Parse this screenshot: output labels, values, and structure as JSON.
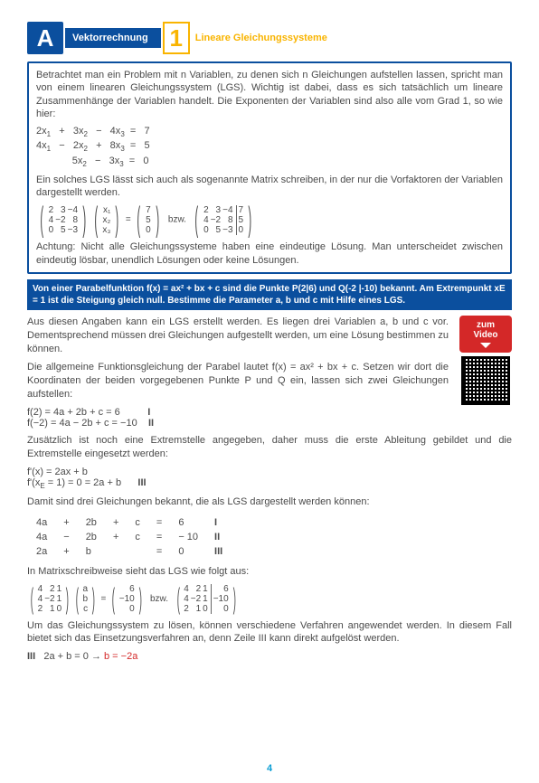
{
  "header": {
    "badge": "A",
    "section": "Vektorrechnung",
    "num": "1",
    "subtitle": "Lineare Gleichungssysteme"
  },
  "box1": {
    "intro": "Betrachtet man ein Problem mit n Variablen, zu denen sich n Gleichungen aufstellen lassen, spricht man von einem linearen Gleichungssystem (LGS). Wichtig ist dabei, dass es sich tatsächlich um lineare Zusammenhänge der Variablen handelt. Die Exponenten der Variablen sind also alle vom Grad 1, so wie hier:",
    "eq1": "2x",
    "eq_matrix_note": "Ein solches LGS lässt sich auch als sogenannte Matrix schreiben, in der nur die Vorfaktoren der Variablen dargestellt werden.",
    "warning": "Achtung: Nicht alle Gleichungssysteme haben eine eindeutige Lösung. Man unterscheidet zwischen eindeutig lösbar, unendlich Lösungen oder keine Lösungen."
  },
  "problem": "Von einer Parabelfunktion f(x) = ax² + bx + c sind die Punkte P(2|6) und Q(-2 |-10) bekannt. Am Extrempunkt xE = 1 ist die Steigung gleich null. Bestimme die Parameter a, b und c mit Hilfe eines LGS.",
  "solution": {
    "p1": "Aus diesen Angaben kann ein LGS erstellt werden. Es liegen drei Variablen a, b und c vor. Dementsprechend müssen drei Gleichungen aufgestellt werden, um eine Lösung bestimmen zu können.",
    "p2": "Die allgemeine Funktionsgleichung der Parabel lautet  f(x) = ax² + bx + c. Setzen wir dort die Koordinaten der beiden vorgegebenen Punkte P und Q ein, lassen sich zwei Gleichungen aufstellen:",
    "e1": "f(2) = 4a + 2b + c = 6",
    "e1n": "I",
    "e2": "f(−2) = 4a − 2b + c = −10",
    "e2n": "II",
    "p3": "Zusätzlich ist noch eine Extremstelle angegeben, daher muss die erste Ableitung gebildet und die Extremstelle eingesetzt werden:",
    "d1": "f'(x) = 2ax + b",
    "d2": "f'(xE = 1) = 0 = 2a + b",
    "d2n": "III",
    "p4": "Damit sind drei Gleichungen bekannt, die als LGS dargestellt werden können:",
    "p5": "In Matrixschreibweise sieht das LGS wie folgt aus:",
    "p6": "Um das Gleichungssystem zu lösen, können verschiedene Verfahren angewendet werden. In diesem Fall bietet sich das Einsetzungsverfahren an, denn Zeile III kann direkt aufgelöst werden.",
    "final_label": "III",
    "final_eq": "2a + b = 0    →  ",
    "final_res": "b = −2a"
  },
  "video": {
    "line1": "zum",
    "line2": "Video"
  },
  "eqs_table": {
    "rows": [
      [
        "4a",
        "+",
        "2b",
        "+",
        "c",
        "=",
        "6",
        "I"
      ],
      [
        "4a",
        "−",
        "2b",
        "+",
        "c",
        "=",
        "− 10",
        "II"
      ],
      [
        "2a",
        "+",
        "b",
        "",
        "",
        "=",
        "0",
        "III"
      ]
    ]
  },
  "page": "4"
}
